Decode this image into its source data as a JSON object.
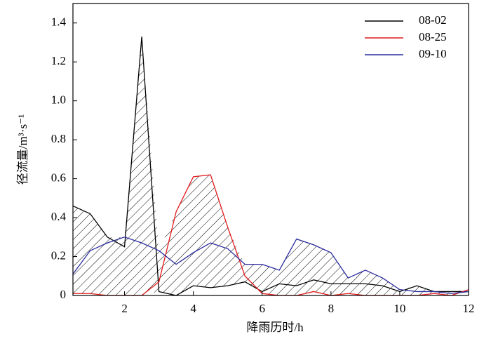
{
  "chart_data": {
    "type": "line",
    "x_label": "降雨历时/h",
    "y_label": "径流量/m³·s⁻¹",
    "x": [
      0.5,
      1,
      1.5,
      2,
      2.5,
      3,
      3.5,
      4,
      4.5,
      5,
      5.5,
      6,
      6.5,
      7,
      7.5,
      8,
      8.5,
      9,
      9.5,
      10,
      10.5,
      11,
      11.5,
      12
    ],
    "series": [
      {
        "name": "08-02",
        "color": "#000000",
        "values": [
          0.46,
          0.42,
          0.3,
          0.25,
          1.33,
          0.02,
          0.0,
          0.05,
          0.04,
          0.05,
          0.07,
          0.02,
          0.06,
          0.05,
          0.08,
          0.06,
          0.06,
          0.06,
          0.05,
          0.02,
          0.05,
          0.02,
          0.02,
          0.02
        ]
      },
      {
        "name": "08-25",
        "color": "#e41a1c",
        "values": [
          0.01,
          0.01,
          0.0,
          0.0,
          0.0,
          0.07,
          0.43,
          0.61,
          0.62,
          0.35,
          0.1,
          0.01,
          0.0,
          0.0,
          0.02,
          0.0,
          0.01,
          0.0,
          0.0,
          0.0,
          0.0,
          0.01,
          0.0,
          0.03
        ]
      },
      {
        "name": "09-10",
        "color": "#2b2b9e",
        "values": [
          0.11,
          0.23,
          0.27,
          0.3,
          0.27,
          0.23,
          0.16,
          0.22,
          0.27,
          0.24,
          0.16,
          0.16,
          0.13,
          0.29,
          0.26,
          0.22,
          0.09,
          0.13,
          0.09,
          0.03,
          0.02,
          0.02,
          0.01,
          0.02
        ]
      }
    ],
    "xlim": [
      0.5,
      12
    ],
    "xticks": [
      2,
      4,
      6,
      8,
      10,
      12
    ],
    "ylim": [
      0,
      1.5
    ],
    "yticks": [
      0,
      0.2,
      0.4,
      0.6,
      0.8,
      {
        "value": 1,
        "label": "1.0"
      },
      1.2,
      1.4
    ],
    "legend": "upper right",
    "hatch": true
  }
}
